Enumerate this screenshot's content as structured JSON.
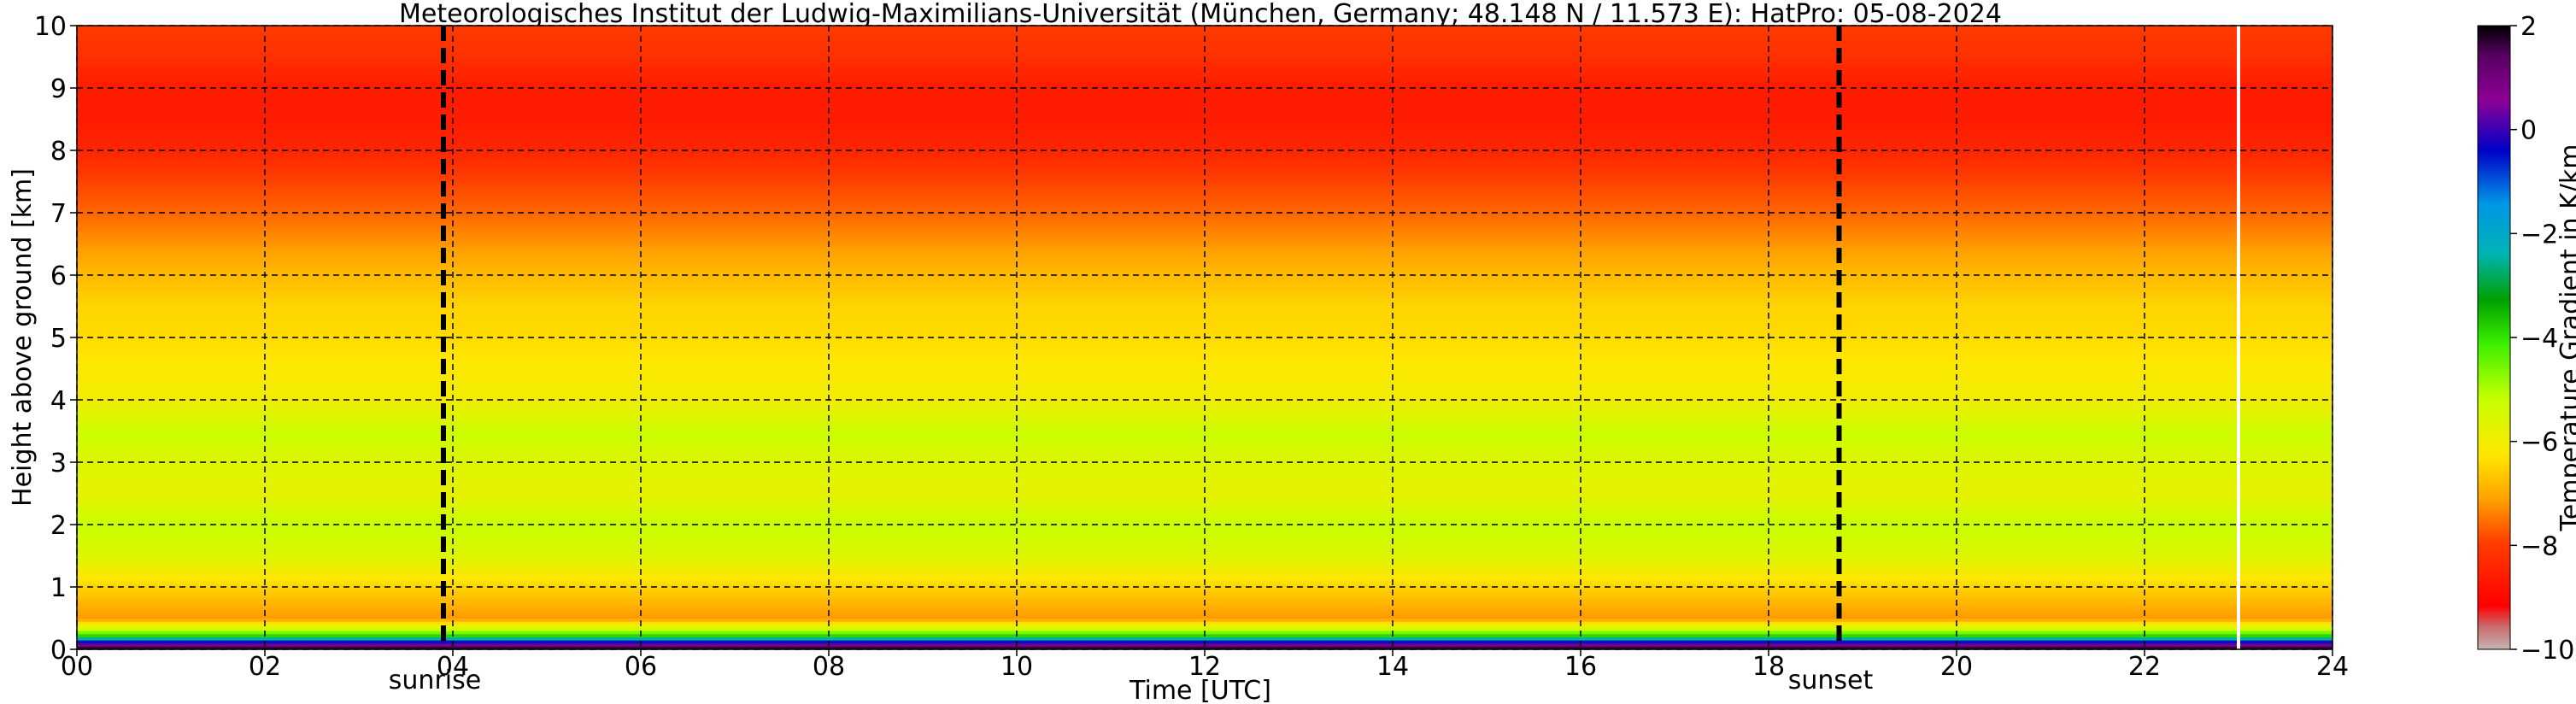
{
  "chart_data": {
    "type": "heatmap",
    "title": "Meteorologisches Institut der Ludwig-Maximilians-Universität (München, Germany; 48.148 N / 11.573 E):    HatPro: 05-08-2024",
    "xlabel": "Time [UTC]",
    "ylabel": "Height above ground [km]",
    "xlim": [
      0,
      24
    ],
    "ylim": [
      0,
      10
    ],
    "x_ticks": [
      "00",
      "02",
      "04",
      "06",
      "08",
      "10",
      "12",
      "14",
      "16",
      "18",
      "20",
      "22",
      "24"
    ],
    "y_ticks": [
      "0",
      "1",
      "2",
      "3",
      "4",
      "5",
      "6",
      "7",
      "8",
      "9",
      "10"
    ],
    "grid": true,
    "annotations": [
      {
        "label": "sunrise",
        "x": 3.9
      },
      {
        "label": "sunset",
        "x": 18.75
      }
    ],
    "colorbar": {
      "label": "Temperature Gradient in K/km",
      "range": [
        -10,
        2
      ],
      "ticks": [
        "2",
        "0",
        "−2",
        "−4",
        "−6",
        "−8",
        "−10"
      ]
    },
    "profile": {
      "heights_km": [
        0,
        0.1,
        0.2,
        0.3,
        0.5,
        1.0,
        1.5,
        2.0,
        2.5,
        3.0,
        3.5,
        4.0,
        4.5,
        5.0,
        5.5,
        6.0,
        6.5,
        7.0,
        7.5,
        8.0,
        8.5,
        9.0,
        9.5,
        10.0
      ],
      "gradient_K_per_km": [
        2.0,
        0.5,
        -3.5,
        -5.0,
        -7.2,
        -6.5,
        -5.6,
        -5.2,
        -5.8,
        -5.6,
        -5.3,
        -6.0,
        -6.2,
        -6.4,
        -6.5,
        -6.8,
        -7.2,
        -7.6,
        -7.9,
        -8.4,
        -8.6,
        -8.6,
        -8.2,
        -8.0
      ]
    },
    "missing_data_x": [
      23.0
    ]
  }
}
